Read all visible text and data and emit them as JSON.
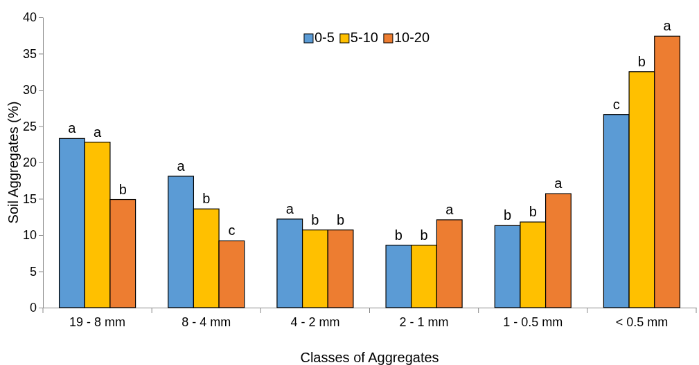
{
  "chart_data": {
    "type": "bar",
    "xlabel": "Classes of Aggregates",
    "ylabel": "Soil Aggregates (%)",
    "categories": [
      "19 - 8 mm",
      "8 - 4 mm",
      "4 - 2 mm",
      "2 - 1 mm",
      "1 - 0.5 mm",
      "< 0.5 mm"
    ],
    "series": [
      {
        "name": "0-5",
        "color": "#5b9bd5",
        "values": [
          23.3,
          18.1,
          12.2,
          8.6,
          11.3,
          26.6
        ],
        "value_labels": [
          "a",
          "a",
          "a",
          "b",
          "b",
          "c"
        ]
      },
      {
        "name": "5-10",
        "color": "#ffc000",
        "values": [
          22.8,
          13.6,
          10.7,
          8.6,
          11.8,
          32.5
        ],
        "value_labels": [
          "a",
          "b",
          "b",
          "b",
          "b",
          "b"
        ]
      },
      {
        "name": "10-20",
        "color": "#ed7d31",
        "values": [
          14.9,
          9.2,
          10.7,
          12.1,
          15.7,
          37.4
        ],
        "value_labels": [
          "b",
          "c",
          "b",
          "a",
          "a",
          "a"
        ]
      }
    ],
    "ylim": [
      0,
      40
    ],
    "yticks": [
      0,
      5,
      10,
      15,
      20,
      25,
      30,
      35,
      40
    ],
    "grid": false,
    "legend": "top"
  }
}
